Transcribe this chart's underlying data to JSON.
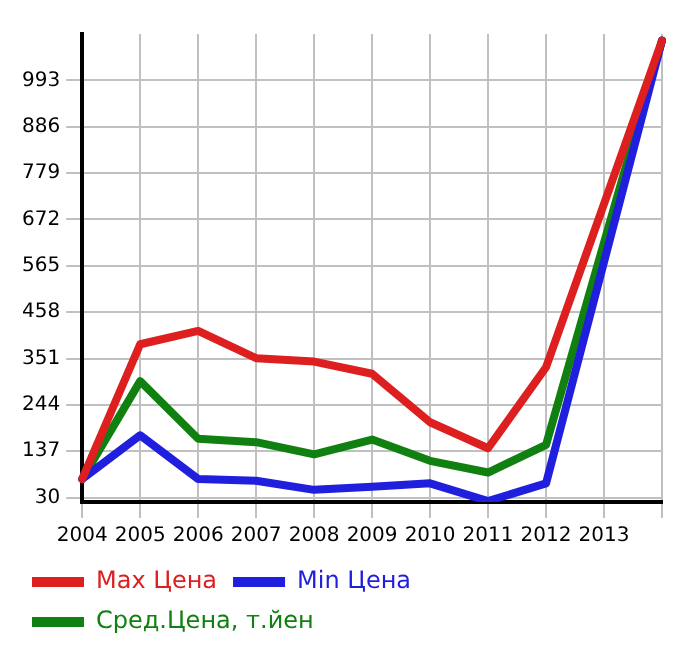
{
  "chart_data": {
    "type": "line",
    "categories": [
      "2004",
      "2005",
      "2006",
      "2007",
      "2008",
      "2009",
      "2010",
      "2011",
      "2012",
      "2013",
      null
    ],
    "series": [
      {
        "name": "Max Цена",
        "color": "#dd1f1f",
        "values": [
          73,
          384,
          415,
          352,
          344,
          316,
          204,
          144,
          331,
          null,
          1085
        ]
      },
      {
        "name": "Min Цена",
        "color": "#1f1fdd",
        "values": [
          73,
          174,
          73,
          69,
          48,
          55,
          63,
          22,
          63,
          null,
          1085
        ]
      },
      {
        "name": "Сред.Цена, т.йен",
        "color": "#108010",
        "values": [
          73,
          299,
          166,
          158,
          130,
          164,
          115,
          88,
          152,
          null,
          1085
        ]
      }
    ],
    "ylim": [
      20,
      1100
    ],
    "yticks": [
      30,
      137,
      244,
      351,
      458,
      565,
      672,
      779,
      886,
      993
    ],
    "grid": true,
    "legend": "bottom",
    "marker": "none",
    "line_style": "solid"
  }
}
